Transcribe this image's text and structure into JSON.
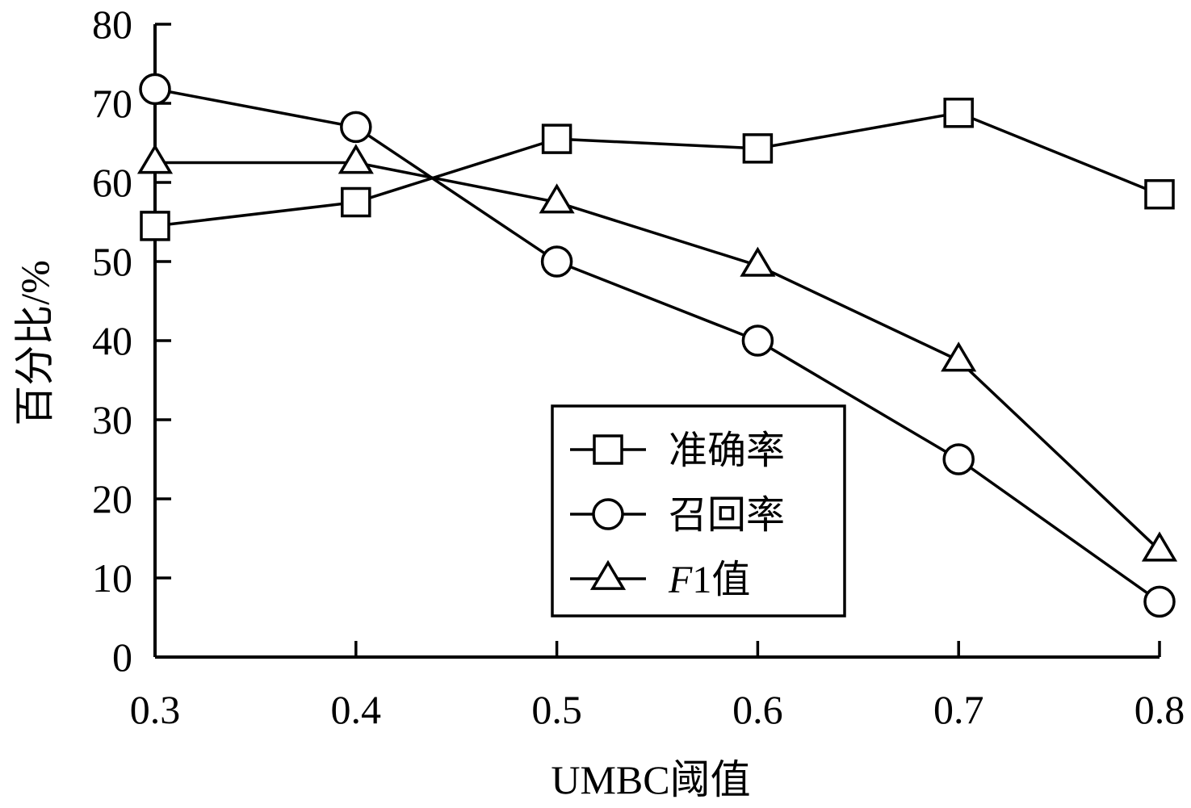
{
  "chart_data": {
    "type": "line",
    "xlabel": "UMBC阈值",
    "ylabel": "百分比/%",
    "x": [
      0.3,
      0.4,
      0.5,
      0.6,
      0.7,
      0.8
    ],
    "x_ticks": [
      "0.3",
      "0.4",
      "0.5",
      "0.6",
      "0.7",
      "0.8"
    ],
    "ylim": [
      0,
      80
    ],
    "y_ticks": [
      "0",
      "10",
      "20",
      "30",
      "40",
      "50",
      "60",
      "70",
      "80"
    ],
    "grid": false,
    "legend_position": "bottom-center",
    "series": [
      {
        "name": "准确率",
        "marker": "square",
        "values": [
          54.5,
          57.5,
          65.5,
          64.3,
          68.8,
          58.5
        ]
      },
      {
        "name": "召回率",
        "marker": "circle",
        "values": [
          71.8,
          67.0,
          50.0,
          40.0,
          25.0,
          7.0
        ]
      },
      {
        "name": "F1值",
        "name_italic_prefix": "F",
        "name_rest": "1值",
        "marker": "triangle",
        "values": [
          62.5,
          62.5,
          57.5,
          49.5,
          37.5,
          13.5
        ]
      }
    ]
  }
}
